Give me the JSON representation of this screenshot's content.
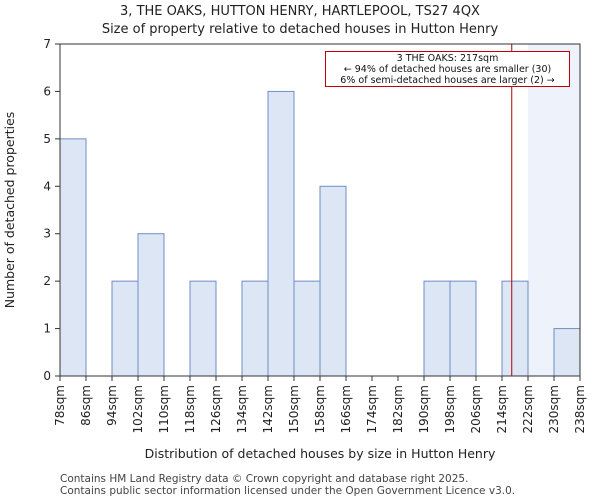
{
  "title_line1": "3, THE OAKS, HUTTON HENRY, HARTLEPOOL, TS27 4QX",
  "title_line2": "Size of property relative to detached houses in Hutton Henry",
  "footer_line1": "Contains HM Land Registry data © Crown copyright and database right 2025.",
  "footer_line2": "Contains public sector information licensed under the Open Government Licence v3.0.",
  "annotation": {
    "line1": "3 THE OAKS: 217sqm",
    "line2": "← 94% of detached houses are smaller (30)",
    "line3": "6% of semi-detached houses are larger (2) →"
  },
  "colors": {
    "bar_fill": "#dde6f4",
    "bar_stroke": "#6f8fc7",
    "marker": "#b00000",
    "shade": "#eef2fb"
  },
  "chart_data": {
    "type": "bar",
    "title": "Size of property relative to detached houses in Hutton Henry",
    "xlabel": "Distribution of detached houses by size in Hutton Henry",
    "ylabel": "Number of detached properties",
    "bin_edges": [
      78,
      86,
      94,
      102,
      110,
      118,
      126,
      134,
      142,
      150,
      158,
      166,
      174,
      182,
      190,
      198,
      206,
      214,
      222,
      230,
      238
    ],
    "tick_labels": [
      "78sqm",
      "86sqm",
      "94sqm",
      "102sqm",
      "110sqm",
      "118sqm",
      "126sqm",
      "134sqm",
      "142sqm",
      "150sqm",
      "158sqm",
      "166sqm",
      "174sqm",
      "182sqm",
      "190sqm",
      "198sqm",
      "206sqm",
      "214sqm",
      "222sqm",
      "230sqm",
      "238sqm"
    ],
    "values": [
      5,
      0,
      2,
      3,
      0,
      2,
      0,
      2,
      6,
      2,
      4,
      0,
      0,
      0,
      2,
      2,
      0,
      2,
      0,
      1
    ],
    "ylim": [
      0,
      7
    ],
    "yticks": [
      0,
      1,
      2,
      3,
      4,
      5,
      6,
      7
    ],
    "xlim": [
      78,
      238
    ],
    "marker_value": 217,
    "marker_label": "3 THE OAKS: 217sqm"
  }
}
